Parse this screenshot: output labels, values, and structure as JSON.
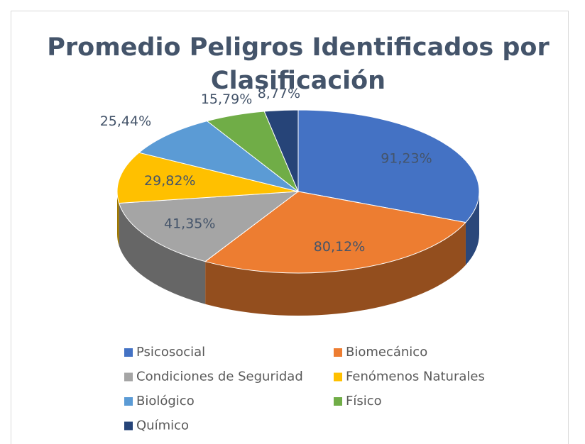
{
  "chart_data": {
    "type": "pie",
    "title": "Promedio Peligros Identificados por Clasificación",
    "categories": [
      "Psicosocial",
      "Biomecánico",
      "Condiciones de Seguridad",
      "Fenómenos Naturales",
      "Biológico",
      "Físico",
      "Químico"
    ],
    "values": [
      91.23,
      80.12,
      41.35,
      29.82,
      25.44,
      15.79,
      8.77
    ],
    "value_labels": [
      "91,23%",
      "80,12%",
      "41,35%",
      "29,82%",
      "25,44%",
      "15,79%",
      "8,77%"
    ],
    "colors": [
      "#4472c4",
      "#ed7d31",
      "#a5a5a5",
      "#ffc000",
      "#5b9bd5",
      "#70ad47",
      "#264478"
    ],
    "legend": "bottom"
  }
}
